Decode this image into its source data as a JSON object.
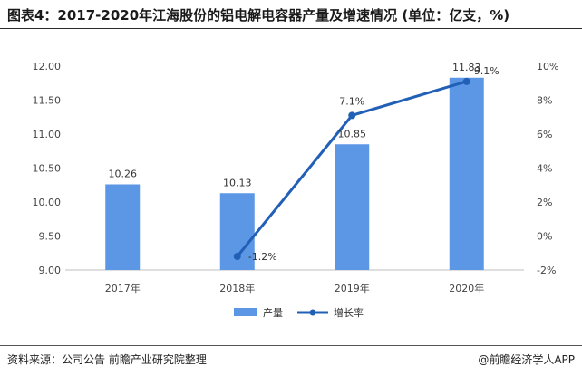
{
  "title": "图表4：2017-2020年江海股份的铝电解电容器产量及增速情况 (单位：亿支，%)",
  "footer": {
    "source": "资料来源：公司公告 前瞻产业研究院整理",
    "brand": "@前瞻经济学人APP"
  },
  "colors": {
    "bar": "#5b97e5",
    "line": "#2260b8"
  },
  "chart_data": {
    "type": "bar",
    "categories": [
      "2017年",
      "2018年",
      "2019年",
      "2020年"
    ],
    "series": [
      {
        "name": "产量",
        "type": "bar",
        "axis": "left",
        "values": [
          10.26,
          10.13,
          10.85,
          11.83
        ],
        "labels": [
          "10.26",
          "10.13",
          "10.85",
          "11.83"
        ]
      },
      {
        "name": "增长率",
        "type": "line",
        "axis": "right",
        "values": [
          null,
          -1.2,
          7.1,
          9.1
        ],
        "labels": [
          "",
          "-1.2%",
          "7.1%",
          "9.1%"
        ]
      }
    ],
    "y_left": {
      "min": 9.0,
      "max": 12.0,
      "ticks": [
        "9.00",
        "9.50",
        "10.00",
        "10.50",
        "11.00",
        "11.50",
        "12.00"
      ]
    },
    "y_right": {
      "min": -2,
      "max": 10,
      "ticks": [
        "-2%",
        "0%",
        "2%",
        "4%",
        "6%",
        "8%",
        "10%"
      ]
    },
    "legend": {
      "placement": "bottom"
    },
    "grid": false
  }
}
